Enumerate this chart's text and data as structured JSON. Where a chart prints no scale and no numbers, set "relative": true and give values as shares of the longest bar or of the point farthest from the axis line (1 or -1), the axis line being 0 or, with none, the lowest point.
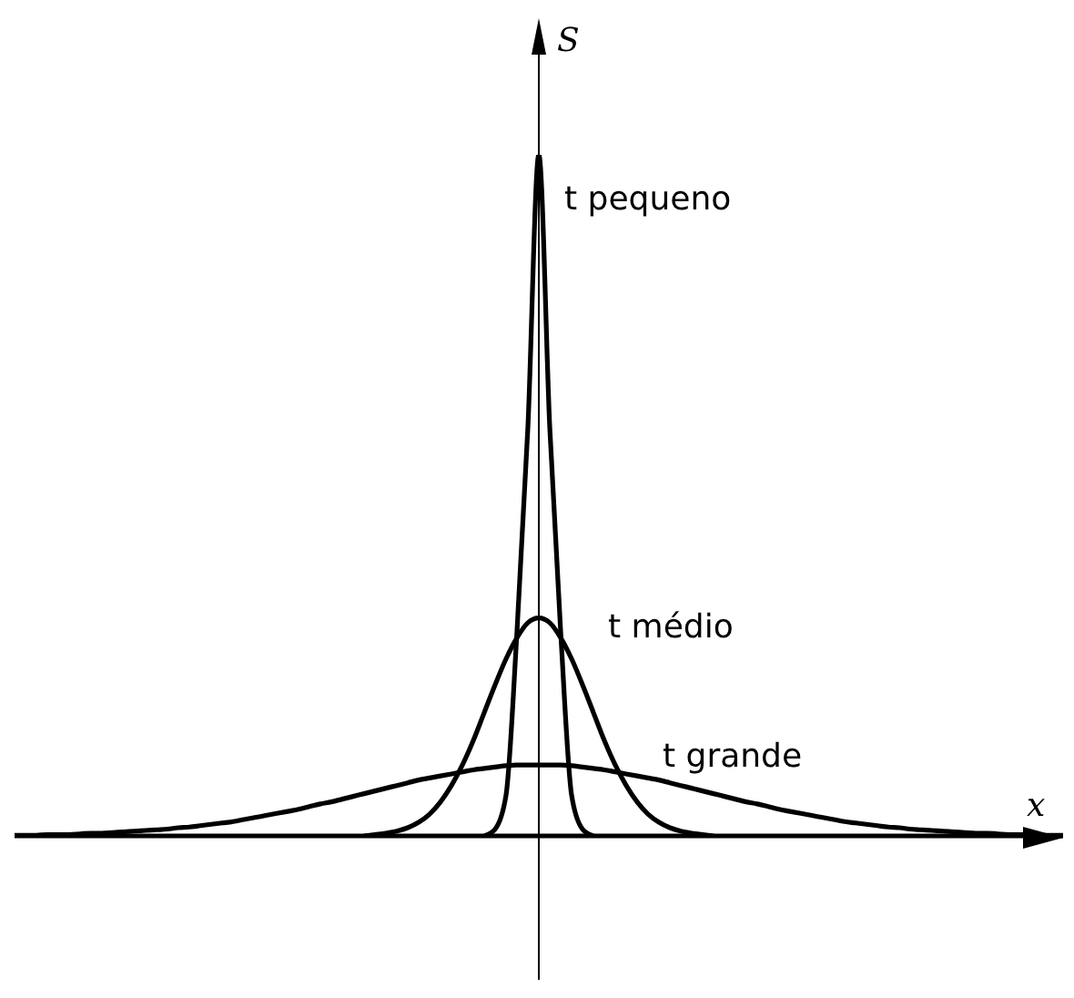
{
  "chart_data": {
    "type": "line",
    "relative": true,
    "marker": "none",
    "line_style": "solid",
    "xlabel": "x",
    "ylabel": "S",
    "categories": [
      null,
      null,
      null,
      null,
      null,
      null,
      null,
      null,
      null,
      null,
      null,
      null,
      null,
      null,
      null,
      null,
      null,
      null,
      null,
      null,
      null,
      null,
      null,
      null,
      null,
      null,
      null,
      null,
      null,
      null,
      null,
      null,
      null,
      null,
      null,
      null,
      null,
      null,
      null,
      null,
      null,
      null,
      null,
      null,
      null,
      null,
      null,
      null,
      null,
      null,
      null,
      null,
      null,
      null,
      null,
      null,
      null,
      null,
      null,
      null,
      null,
      null,
      null,
      null,
      null,
      null,
      null,
      null,
      null,
      null,
      null,
      null,
      null,
      null,
      null,
      null,
      null,
      null,
      null,
      null,
      null,
      null,
      null,
      null,
      null,
      null,
      null,
      null,
      null,
      null,
      null,
      null,
      null,
      null,
      null,
      null,
      null
    ],
    "series": [
      {
        "name": "t pequeno",
        "color": "#000000",
        "values": [
          null,
          null,
          null,
          null,
          null,
          null,
          null,
          null,
          null,
          null,
          null,
          null,
          null,
          null,
          null,
          null,
          null,
          null,
          null,
          null,
          null,
          null,
          null,
          null,
          null,
          null,
          null,
          null,
          null,
          null,
          null,
          null,
          null,
          null,
          null,
          null,
          null,
          null,
          null,
          null,
          null,
          null,
          null,
          0,
          0.01,
          0.06,
          0.3,
          0.6,
          1,
          0.6,
          0.3,
          0.06,
          0.01,
          0,
          null,
          null,
          null,
          null,
          null,
          null,
          null,
          null,
          null,
          null,
          null,
          null,
          null,
          null,
          null,
          null,
          null,
          null,
          null,
          null,
          null,
          null,
          null,
          null,
          null,
          null,
          null,
          null,
          null,
          null,
          null,
          null,
          null,
          null,
          null,
          null,
          null,
          null,
          null,
          null,
          null,
          null,
          null
        ]
      },
      {
        "name": "t médio",
        "color": "#000000",
        "values": [
          null,
          null,
          null,
          null,
          null,
          null,
          null,
          null,
          null,
          null,
          null,
          null,
          null,
          null,
          null,
          null,
          null,
          null,
          null,
          null,
          null,
          null,
          null,
          null,
          null,
          null,
          null,
          null,
          null,
          null,
          null,
          null,
          0,
          0.002,
          0.004,
          0.007,
          0.012,
          0.02,
          0.032,
          0.05,
          0.074,
          0.104,
          0.14,
          0.181,
          0.222,
          0.26,
          0.291,
          0.313,
          0.32,
          0.313,
          0.291,
          0.26,
          0.222,
          0.181,
          0.14,
          0.104,
          0.074,
          0.05,
          0.032,
          0.02,
          0.012,
          0.007,
          0.004,
          0.002,
          0,
          null,
          null,
          null,
          null,
          null,
          null,
          null,
          null,
          null,
          null,
          null,
          null,
          null,
          null,
          null,
          null,
          null,
          null,
          null,
          null,
          null,
          null,
          null,
          null,
          null,
          null,
          null,
          null,
          null,
          null,
          null,
          null
        ]
      },
      {
        "name": "t grande",
        "color": "#000000",
        "values": [
          0.001,
          0.001,
          0.001,
          0.002,
          0.002,
          0.002,
          0.003,
          0.004,
          0.004,
          0.005,
          0.006,
          0.007,
          0.008,
          0.009,
          0.01,
          0.012,
          0.013,
          0.015,
          0.017,
          0.019,
          0.021,
          0.024,
          0.027,
          0.03,
          0.033,
          0.036,
          0.039,
          0.043,
          0.047,
          0.05,
          0.054,
          0.058,
          0.062,
          0.066,
          0.07,
          0.074,
          0.078,
          0.082,
          0.085,
          0.088,
          0.091,
          0.094,
          0.097,
          0.099,
          0.101,
          0.103,
          0.104,
          0.104,
          0.104,
          0.104,
          0.104,
          0.103,
          0.101,
          0.099,
          0.097,
          0.094,
          0.091,
          0.088,
          0.085,
          0.082,
          0.078,
          0.074,
          0.07,
          0.066,
          0.062,
          0.058,
          0.054,
          0.05,
          0.047,
          0.043,
          0.039,
          0.036,
          0.033,
          0.03,
          0.027,
          0.024,
          0.021,
          0.019,
          0.017,
          0.015,
          0.013,
          0.012,
          0.01,
          0.009,
          0.008,
          0.007,
          0.006,
          0.005,
          0.004,
          0.004,
          0.003,
          0.002,
          0.002,
          0.002,
          0.001,
          0.001,
          0.001
        ]
      }
    ]
  }
}
